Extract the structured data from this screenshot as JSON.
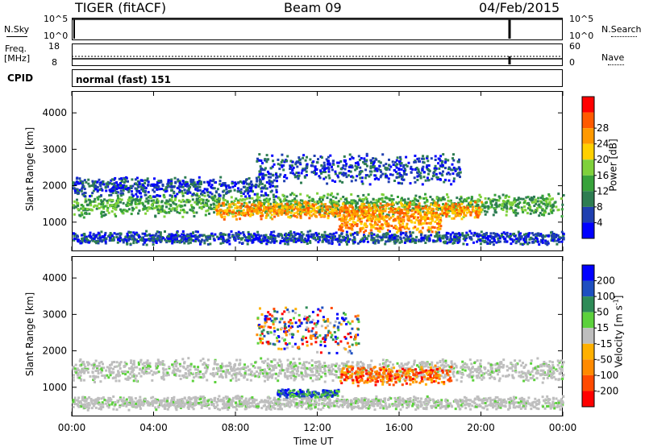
{
  "header": {
    "radar": "TIGER (fitACF)",
    "beam": "Beam 09",
    "date": "04/Feb/2015"
  },
  "strip": {
    "nsky_label": "N.Sky",
    "nsearch_label": "N.Search",
    "noise_ticks": [
      "10^5",
      "10^0"
    ],
    "freq_label_1": "Freq.",
    "freq_label_2": "[MHz]",
    "freq_ticks": [
      "18",
      "8"
    ],
    "nave_label": "Nave",
    "nave_ticks": [
      "60",
      "0"
    ],
    "cpid_label": "CPID",
    "cpid_value": "normal (fast) 151"
  },
  "colors": {
    "power_scale": [
      "#0000ff",
      "#1f3fb0",
      "#2e7d52",
      "#37a23a",
      "#7fd13b",
      "#ffd000",
      "#ff9900",
      "#ff5a00",
      "#ff0000"
    ],
    "velocity_scale": [
      "#0000ff",
      "#1e4fc0",
      "#2e8b57",
      "#5cd13c",
      "#bebebe",
      "#ffb000",
      "#ff8a00",
      "#ff4a00",
      "#ff0000"
    ],
    "ground_scatter": "#bebebe"
  },
  "chart_data": [
    {
      "type": "heatmap",
      "title": "Power",
      "xlabel": "Time UT",
      "ylabel": "Slant Range [km]",
      "xlim": [
        "00:00",
        "24:00"
      ],
      "ylim": [
        200,
        4600
      ],
      "x_ticks": [
        "00:00",
        "04:00",
        "08:00",
        "12:00",
        "16:00",
        "20:00",
        "00:00"
      ],
      "y_ticks": [
        1000,
        2000,
        3000,
        4000
      ],
      "colorbar": {
        "label": "Power [dB]",
        "ticks": [
          4,
          8,
          12,
          16,
          20,
          24,
          28
        ]
      },
      "bands": [
        {
          "t_start": 0.0,
          "t_end": 24.0,
          "r_center": 1500,
          "r_width": 350,
          "level": "medium"
        },
        {
          "t_start": 7.0,
          "t_end": 20.0,
          "r_center": 1350,
          "r_width": 250,
          "level": "high"
        },
        {
          "t_start": 13.0,
          "t_end": 18.0,
          "r_center": 1000,
          "r_width": 300,
          "level": "high"
        },
        {
          "t_start": 0.0,
          "t_end": 10.0,
          "r_center": 2000,
          "r_width": 300,
          "level": "low"
        },
        {
          "t_start": 9.0,
          "t_end": 19.0,
          "r_center": 2500,
          "r_width": 450,
          "level": "low"
        },
        {
          "t_start": 0.0,
          "t_end": 24.0,
          "r_center": 600,
          "r_width": 200,
          "level": "low"
        }
      ]
    },
    {
      "type": "heatmap",
      "title": "Velocity",
      "xlabel": "Time UT",
      "ylabel": "Slant Range [km]",
      "xlim": [
        "00:00",
        "24:00"
      ],
      "ylim": [
        200,
        4600
      ],
      "x_ticks": [
        "00:00",
        "04:00",
        "08:00",
        "12:00",
        "16:00",
        "20:00",
        "00:00"
      ],
      "y_ticks": [
        1000,
        2000,
        3000,
        4000
      ],
      "colorbar": {
        "label": "Velocity [m s^-1]",
        "ticks": [
          200,
          100,
          50,
          15,
          -15,
          -50,
          -100,
          -200
        ]
      },
      "bands": [
        {
          "t_start": 0.0,
          "t_end": 24.0,
          "r_center": 1500,
          "r_width": 350,
          "level": "ground"
        },
        {
          "t_start": 13.0,
          "t_end": 18.5,
          "r_center": 1350,
          "r_width": 300,
          "level": "negative"
        },
        {
          "t_start": 10.0,
          "t_end": 13.0,
          "r_center": 850,
          "r_width": 150,
          "level": "positive"
        },
        {
          "t_start": 9.0,
          "t_end": 14.0,
          "r_center": 2600,
          "r_width": 700,
          "level": "mixed"
        },
        {
          "t_start": 0.0,
          "t_end": 24.0,
          "r_center": 600,
          "r_width": 200,
          "level": "ground"
        }
      ]
    }
  ],
  "footer": {
    "xlabel": "Time UT"
  }
}
